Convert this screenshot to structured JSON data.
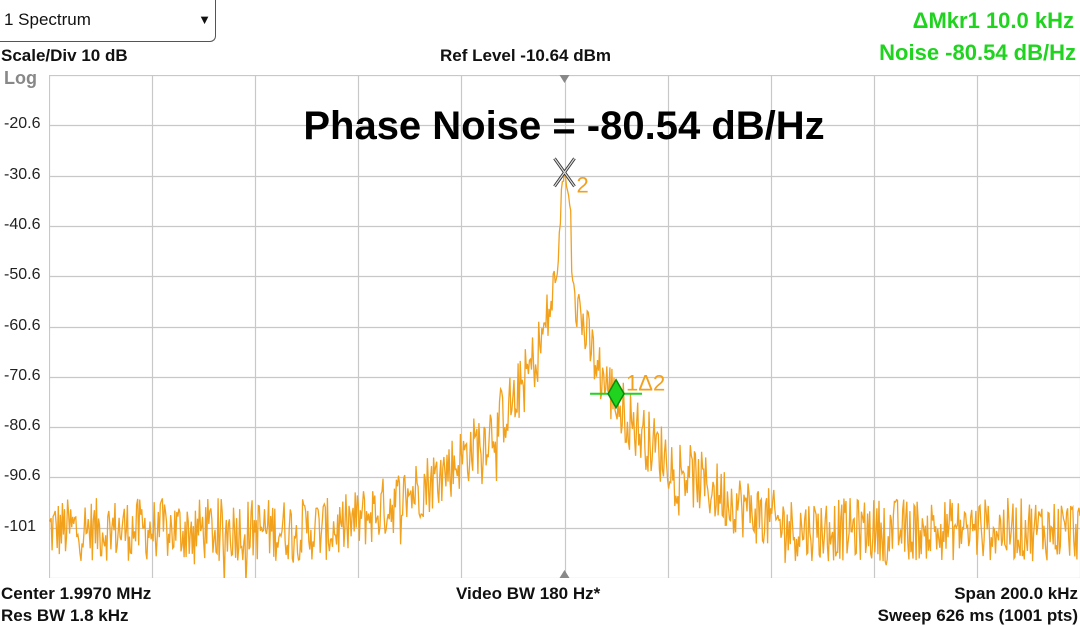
{
  "window": {
    "measurement_selector": "1 Spectrum"
  },
  "header": {
    "scale_div": "Scale/Div 10 dB",
    "log_label": "Log",
    "ref_level": "Ref Level -10.64 dBm",
    "marker_readout": "ΔMkr1  10.0 kHz",
    "noise_readout": "Noise -80.54 dB/Hz"
  },
  "annotation": {
    "title": "Phase Noise = -80.54 dB/Hz"
  },
  "chart_data": {
    "type": "line",
    "y_tick_labels": [
      "-20.6",
      "-30.6",
      "-40.6",
      "-50.6",
      "-60.6",
      "-70.6",
      "-80.6",
      "-90.6",
      "-101"
    ],
    "ylim": [
      -110.64,
      -10.64
    ],
    "xlim": [
      1.897,
      2.097
    ],
    "x_unit": "MHz",
    "y_unit": "dBm",
    "grid": true,
    "center_mhz": 1.997,
    "span_khz": 200.0,
    "trace_color": "#f2a11d",
    "markers": [
      {
        "label": "2",
        "x_mhz": 1.997,
        "y_dbm": -30.0,
        "color": "#888888",
        "label_color": "#f2a11d"
      },
      {
        "label": "1Δ2",
        "x_mhz": 2.007,
        "y_dbm": -74.0,
        "color": "#1fd31f",
        "label_color": "#f2a11d"
      }
    ]
  },
  "footer": {
    "center": "Center 1.9970 MHz",
    "res_bw": "Res BW 1.8 kHz",
    "video_bw": "Video BW 180 Hz*",
    "span": "Span 200.0 kHz",
    "sweep": "Sweep 626 ms (1001 pts)"
  }
}
